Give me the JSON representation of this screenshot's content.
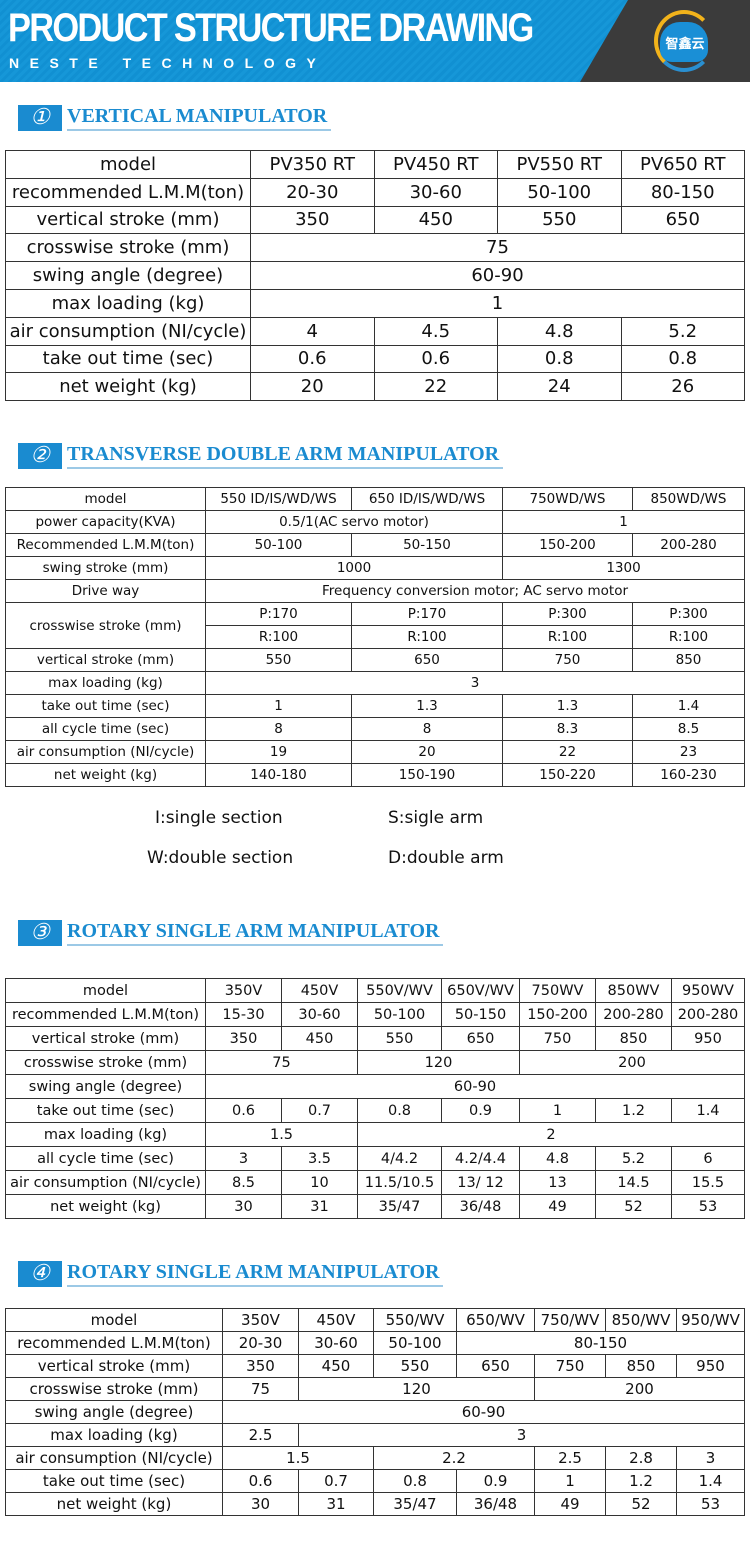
{
  "banner": {
    "title": "PRODUCT STRUCTURE DRAWING",
    "subtitle": "NESTE TECHNOLOGY",
    "logo_text": "智鑫云",
    "colors": {
      "blue": "#1697d8",
      "dark": "#3b3b3b"
    }
  },
  "sections": [
    {
      "num": "①",
      "title": "VERTICAL MANIPULATOR"
    },
    {
      "num": "②",
      "title": "TRANSVERSE DOUBLE ARM MANIPULATOR"
    },
    {
      "num": "③",
      "title": "ROTARY SINGLE ARM MANIPULATOR"
    },
    {
      "num": "④",
      "title": "ROTARY SINGLE ARM MANIPULATOR"
    }
  ],
  "accent": "#1a8bd0",
  "tables": [
    {
      "rows": [
        [
          {
            "t": "model"
          },
          {
            "t": "PV350 RT"
          },
          {
            "t": "PV450 RT"
          },
          {
            "t": "PV550 RT"
          },
          {
            "t": "PV650 RT"
          }
        ],
        [
          {
            "t": "recommended L.M.M(ton)"
          },
          {
            "t": "20-30"
          },
          {
            "t": "30-60"
          },
          {
            "t": "50-100"
          },
          {
            "t": "80-150"
          }
        ],
        [
          {
            "t": "vertical stroke (mm)"
          },
          {
            "t": "350"
          },
          {
            "t": "450"
          },
          {
            "t": "550"
          },
          {
            "t": "650"
          }
        ],
        [
          {
            "t": "crosswise stroke (mm)"
          },
          {
            "t": "75",
            "span": 4
          }
        ],
        [
          {
            "t": "swing angle (degree)"
          },
          {
            "t": "60-90",
            "span": 4
          }
        ],
        [
          {
            "t": "max loading (kg)"
          },
          {
            "t": "1",
            "span": 4
          }
        ],
        [
          {
            "t": "air consumption (NI/cycle)"
          },
          {
            "t": "4"
          },
          {
            "t": "4.5"
          },
          {
            "t": "4.8"
          },
          {
            "t": "5.2"
          }
        ],
        [
          {
            "t": "take out time (sec)"
          },
          {
            "t": "0.6"
          },
          {
            "t": "0.6"
          },
          {
            "t": "0.8"
          },
          {
            "t": "0.8"
          }
        ],
        [
          {
            "t": "net weight (kg)"
          },
          {
            "t": "20"
          },
          {
            "t": "22"
          },
          {
            "t": "24"
          },
          {
            "t": "26"
          }
        ]
      ]
    },
    {
      "rows": [
        [
          {
            "t": "model"
          },
          {
            "t": "550 ID/IS/WD/WS"
          },
          {
            "t": "650 ID/IS/WD/WS"
          },
          {
            "t": "750WD/WS"
          },
          {
            "t": "850WD/WS"
          }
        ],
        [
          {
            "t": "power capacity(KVA)"
          },
          {
            "t": "0.5/1(AC servo motor)",
            "span": 2
          },
          {
            "t": "1",
            "span": 2
          }
        ],
        [
          {
            "t": "Recommended L.M.M(ton)"
          },
          {
            "t": "50-100"
          },
          {
            "t": "50-150"
          },
          {
            "t": "150-200"
          },
          {
            "t": "200-280"
          }
        ],
        [
          {
            "t": "swing stroke (mm)"
          },
          {
            "t": "1000",
            "span": 2
          },
          {
            "t": "1300",
            "span": 2
          }
        ],
        [
          {
            "t": "Drive way"
          },
          {
            "t": "Frequency conversion motor; AC servo motor",
            "span": 4
          }
        ],
        [
          {
            "t": "crosswise stroke (mm)",
            "rowspan": 2
          },
          {
            "t": "P:170"
          },
          {
            "t": "P:170"
          },
          {
            "t": "P:300"
          },
          {
            "t": "P:300"
          }
        ],
        [
          {
            "t": "R:100"
          },
          {
            "t": "R:100"
          },
          {
            "t": "R:100"
          },
          {
            "t": "R:100"
          }
        ],
        [
          {
            "t": "vertical stroke (mm)"
          },
          {
            "t": "550"
          },
          {
            "t": "650"
          },
          {
            "t": "750"
          },
          {
            "t": "850"
          }
        ],
        [
          {
            "t": "max loading (kg)"
          },
          {
            "t": "3",
            "span": 4
          }
        ],
        [
          {
            "t": "take out time (sec)"
          },
          {
            "t": "1"
          },
          {
            "t": "1.3"
          },
          {
            "t": "1.3"
          },
          {
            "t": "1.4"
          }
        ],
        [
          {
            "t": "all cycle time (sec)"
          },
          {
            "t": "8"
          },
          {
            "t": "8"
          },
          {
            "t": "8.3"
          },
          {
            "t": "8.5"
          }
        ],
        [
          {
            "t": "air consumption (NI/cycle)"
          },
          {
            "t": "19"
          },
          {
            "t": "20"
          },
          {
            "t": "22"
          },
          {
            "t": "23"
          }
        ],
        [
          {
            "t": "net weight (kg)"
          },
          {
            "t": "140-180"
          },
          {
            "t": "150-190"
          },
          {
            "t": "150-220"
          },
          {
            "t": "160-230"
          }
        ]
      ]
    },
    {
      "rows": [
        [
          {
            "t": "model"
          },
          {
            "t": "350V"
          },
          {
            "t": "450V"
          },
          {
            "t": "550V/WV"
          },
          {
            "t": "650V/WV"
          },
          {
            "t": "750WV"
          },
          {
            "t": "850WV"
          },
          {
            "t": "950WV"
          }
        ],
        [
          {
            "t": "recommended L.M.M(ton)"
          },
          {
            "t": "15-30"
          },
          {
            "t": "30-60"
          },
          {
            "t": "50-100"
          },
          {
            "t": "50-150"
          },
          {
            "t": "150-200"
          },
          {
            "t": "200-280"
          },
          {
            "t": "200-280"
          }
        ],
        [
          {
            "t": "vertical stroke (mm)"
          },
          {
            "t": "350"
          },
          {
            "t": "450"
          },
          {
            "t": "550"
          },
          {
            "t": "650"
          },
          {
            "t": "750"
          },
          {
            "t": "850"
          },
          {
            "t": "950"
          }
        ],
        [
          {
            "t": "crosswise stroke (mm)"
          },
          {
            "t": "75",
            "span": 2
          },
          {
            "t": "120",
            "span": 2
          },
          {
            "t": "200",
            "span": 3
          }
        ],
        [
          {
            "t": "swing angle (degree)"
          },
          {
            "t": "60-90",
            "span": 7
          }
        ],
        [
          {
            "t": "take out time (sec)"
          },
          {
            "t": "0.6"
          },
          {
            "t": "0.7"
          },
          {
            "t": "0.8"
          },
          {
            "t": "0.9"
          },
          {
            "t": "1"
          },
          {
            "t": "1.2"
          },
          {
            "t": "1.4"
          }
        ],
        [
          {
            "t": "max loading (kg)"
          },
          {
            "t": "1.5",
            "span": 2
          },
          {
            "t": "2",
            "span": 5
          }
        ],
        [
          {
            "t": "all cycle time (sec)"
          },
          {
            "t": "3"
          },
          {
            "t": "3.5"
          },
          {
            "t": "4/4.2"
          },
          {
            "t": "4.2/4.4"
          },
          {
            "t": "4.8"
          },
          {
            "t": "5.2"
          },
          {
            "t": "6"
          }
        ],
        [
          {
            "t": "air consumption (NI/cycle)"
          },
          {
            "t": "8.5"
          },
          {
            "t": "10"
          },
          {
            "t": "11.5/10.5"
          },
          {
            "t": "13/ 12"
          },
          {
            "t": "13"
          },
          {
            "t": "14.5"
          },
          {
            "t": "15.5"
          }
        ],
        [
          {
            "t": "net weight (kg)"
          },
          {
            "t": "30"
          },
          {
            "t": "31"
          },
          {
            "t": "35/47"
          },
          {
            "t": "36/48"
          },
          {
            "t": "49"
          },
          {
            "t": "52"
          },
          {
            "t": "53"
          }
        ]
      ]
    },
    {
      "rows": [
        [
          {
            "t": "model"
          },
          {
            "t": "350V"
          },
          {
            "t": "450V"
          },
          {
            "t": "550/WV"
          },
          {
            "t": "650/WV"
          },
          {
            "t": "750/WV"
          },
          {
            "t": "850/WV"
          },
          {
            "t": "950/WV"
          }
        ],
        [
          {
            "t": "recommended L.M.M(ton)"
          },
          {
            "t": "20-30"
          },
          {
            "t": "30-60"
          },
          {
            "t": "50-100"
          },
          {
            "t": "80-150",
            "span": 4
          }
        ],
        [
          {
            "t": "vertical stroke (mm)"
          },
          {
            "t": "350"
          },
          {
            "t": "450"
          },
          {
            "t": "550"
          },
          {
            "t": "650"
          },
          {
            "t": "750"
          },
          {
            "t": "850"
          },
          {
            "t": "950"
          }
        ],
        [
          {
            "t": "crosswise stroke (mm)"
          },
          {
            "t": "75"
          },
          {
            "t": "120",
            "span": 3
          },
          {
            "t": "200",
            "span": 3
          }
        ],
        [
          {
            "t": "swing angle (degree)"
          },
          {
            "t": "60-90",
            "span": 7
          }
        ],
        [
          {
            "t": "max loading (kg)"
          },
          {
            "t": "2.5"
          },
          {
            "t": "3",
            "span": 6
          }
        ],
        [
          {
            "t": "air consumption (NI/cycle)"
          },
          {
            "t": "1.5",
            "span": 2
          },
          {
            "t": "2.2",
            "span": 2
          },
          {
            "t": "2.5"
          },
          {
            "t": "2.8"
          },
          {
            "t": "3"
          }
        ],
        [
          {
            "t": "take out time (sec)"
          },
          {
            "t": "0.6"
          },
          {
            "t": "0.7"
          },
          {
            "t": "0.8"
          },
          {
            "t": "0.9"
          },
          {
            "t": "1"
          },
          {
            "t": "1.2"
          },
          {
            "t": "1.4"
          }
        ],
        [
          {
            "t": "net weight (kg)"
          },
          {
            "t": "30"
          },
          {
            "t": "31"
          },
          {
            "t": "35/47"
          },
          {
            "t": "36/48"
          },
          {
            "t": "49"
          },
          {
            "t": "52"
          },
          {
            "t": "53"
          }
        ]
      ]
    }
  ],
  "legend": [
    "I:single section",
    "S:sigle arm",
    "W:double section",
    "D:double arm"
  ]
}
